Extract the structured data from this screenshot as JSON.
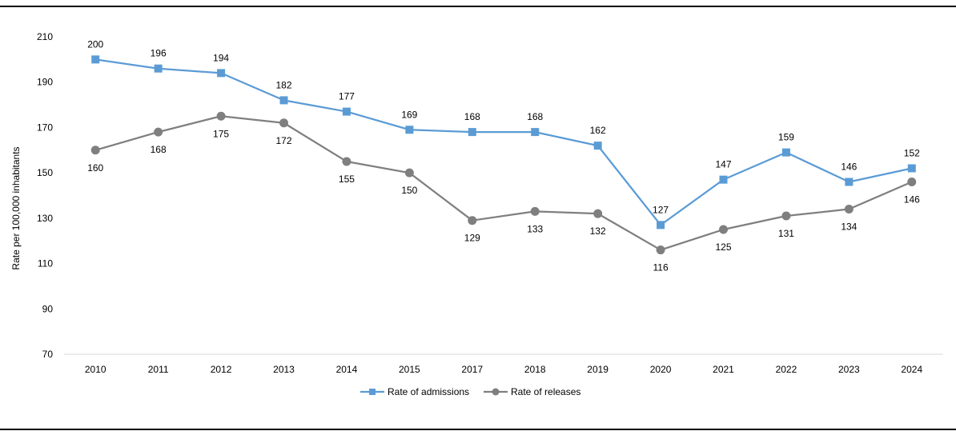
{
  "chart_data": {
    "type": "line",
    "categories": [
      "2010",
      "2011",
      "2012",
      "2013",
      "2014",
      "2015",
      "2017",
      "2018",
      "2019",
      "2020",
      "2021",
      "2022",
      "2023",
      "2024"
    ],
    "series": [
      {
        "name": "Rate of admissions",
        "values": [
          200,
          196,
          194,
          182,
          177,
          169,
          168,
          168,
          162,
          127,
          147,
          159,
          146,
          152
        ],
        "color": "#5b9bd5",
        "marker": "square",
        "label_position": "above"
      },
      {
        "name": "Rate of releases",
        "values": [
          160,
          168,
          175,
          172,
          155,
          150,
          129,
          133,
          132,
          116,
          125,
          131,
          134,
          146
        ],
        "color": "#7f7f7f",
        "marker": "circle",
        "label_position": "below"
      }
    ],
    "ylabel": "Rate per 100,000 inhabitants",
    "xlabel": "",
    "ylim": [
      70,
      210
    ],
    "yticks": [
      70,
      90,
      110,
      130,
      150,
      170,
      190,
      210
    ],
    "grid": false,
    "legend_position": "bottom"
  }
}
